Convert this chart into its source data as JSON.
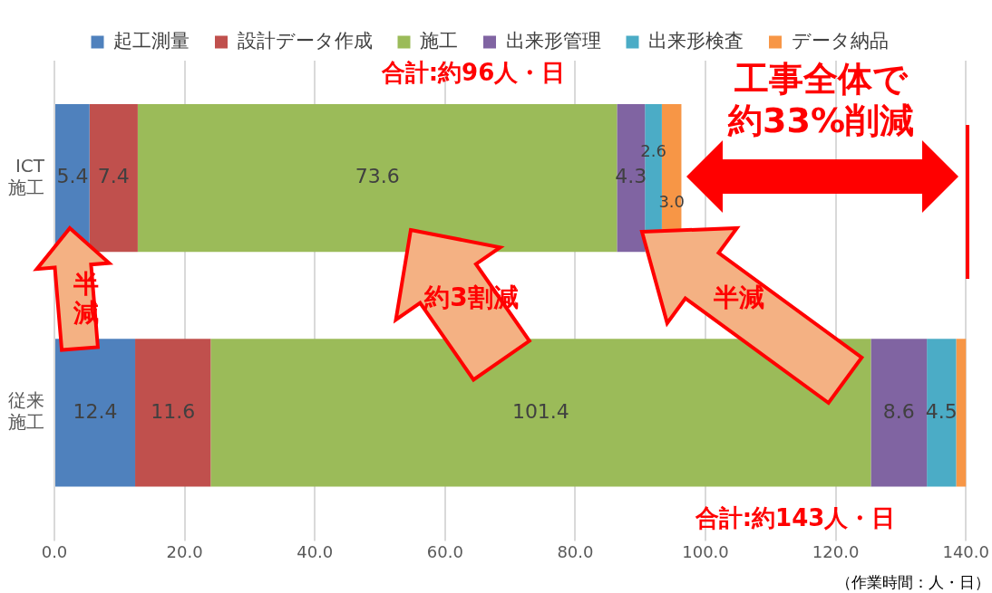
{
  "chart_data": {
    "type": "bar",
    "orientation": "horizontal",
    "stacked": true,
    "categories": [
      "ICT施工",
      "従来施工"
    ],
    "series": [
      {
        "name": "起工測量",
        "color": "#4f81bd",
        "values": [
          5.4,
          12.4
        ],
        "value_labels": [
          "5.4",
          "12.4"
        ]
      },
      {
        "name": "設計データ作成",
        "color": "#c0504d",
        "values": [
          7.4,
          11.6
        ],
        "value_labels": [
          "7.4",
          "11.6"
        ]
      },
      {
        "name": "施工",
        "color": "#9bbb59",
        "values": [
          73.6,
          101.4
        ],
        "value_labels": [
          "73.6",
          "101.4"
        ]
      },
      {
        "name": "出来形管理",
        "color": "#8064a2",
        "values": [
          4.3,
          8.6
        ],
        "value_labels": [
          "4.3",
          "8.6"
        ]
      },
      {
        "name": "出来形検査",
        "color": "#4bacc6",
        "values": [
          2.6,
          4.5
        ],
        "value_labels": [
          "2.6",
          "4.5"
        ]
      },
      {
        "name": "データ納品",
        "color": "#f79646",
        "values": [
          3.0,
          2.0
        ],
        "value_labels": [
          "3.0",
          null
        ]
      }
    ],
    "xlim": [
      0,
      140
    ],
    "xticks": [
      {
        "value": 0,
        "label": "0.0"
      },
      {
        "value": 20,
        "label": "20.0"
      },
      {
        "value": 40,
        "label": "40.0"
      },
      {
        "value": 60,
        "label": "60.0"
      },
      {
        "value": 80,
        "label": "80.0"
      },
      {
        "value": 100,
        "label": "100.0"
      },
      {
        "value": 120,
        "label": "120.0"
      },
      {
        "value": 140,
        "label": "140.0"
      }
    ],
    "grid": "x",
    "legend": "top",
    "annotations": [
      "合計:約96人・日",
      "合計:約143人・日",
      "工事全体で約33%削減",
      "半減",
      "約3割減",
      "半減",
      "（作業時間：人・日）"
    ]
  }
}
